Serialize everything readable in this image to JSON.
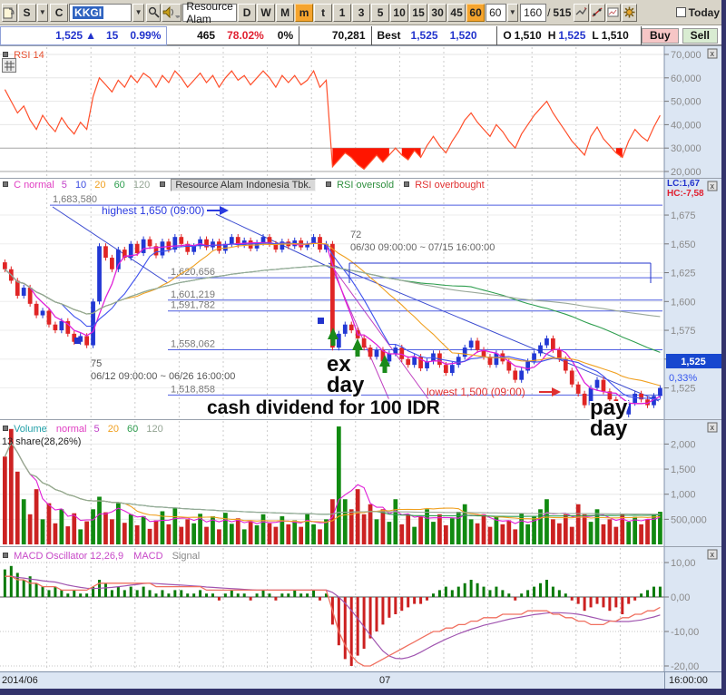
{
  "toolbar": {
    "s_label": "S",
    "c_label": "C",
    "symbol": "KKGI",
    "name": "Resource Alam",
    "period_buttons": [
      "D",
      "W",
      "M",
      "m",
      "t"
    ],
    "minute_buttons": [
      "1",
      "3",
      "5",
      "10",
      "15",
      "30",
      "45",
      "60"
    ],
    "minute_select_value": "60",
    "bar_count": "160",
    "slash": "/",
    "bar_total": "515",
    "today_label": "Today"
  },
  "quote": {
    "price": "1,525",
    "arrow": "▲",
    "change": "15",
    "change_pct": "0.99%",
    "v1": "465",
    "v2": "78.02%",
    "v3": "0%",
    "volume": "70,281",
    "best_label": "Best",
    "bid": "1,525",
    "ask": "1,520",
    "o_label": "O",
    "open": "1,510",
    "h_label": "H",
    "high": "1,525",
    "l_label": "L",
    "low": "1,510",
    "buy_label": "Buy",
    "sell_label": "Sell"
  },
  "rsi_panel": {
    "legend": "RSI 14",
    "axis_labels": [
      "70,000",
      "60,000",
      "50,000",
      "40,000",
      "30,000",
      "20,000"
    ]
  },
  "main_panel": {
    "legend_price": "C normal",
    "ma_periods": [
      "5",
      "10",
      "20",
      "60",
      "120"
    ],
    "name_box": "Resource Alam Indonesia Tbk.",
    "oversold": "RSI oversold",
    "overbought": "RSI overbought",
    "lc": "LC:1,67",
    "hc": "HC:-7,58",
    "axis_labels": [
      "1,675",
      "1,650",
      "1,625",
      "1,600",
      "1,575",
      "1,550",
      "1,525"
    ],
    "badge_price": "1,525",
    "badge_pct": "0,33%",
    "levels": [
      {
        "label": "1,683,580",
        "value": 1683.58
      },
      {
        "label": "1,620,656",
        "value": 1620.656
      },
      {
        "label": "1,601,219",
        "value": 1601.219
      },
      {
        "label": "1,591,782",
        "value": 1591.782
      },
      {
        "label": "1,558,062",
        "value": 1558.062
      },
      {
        "label": "1,518,858",
        "value": 1518.858
      }
    ],
    "highest_label": "highest 1,650 (09:00)",
    "lowest_label": "lowest 1,500 (09:00)",
    "sel_a": {
      "count": "72",
      "range": "06/30 09:00:00 ~ 07/15 16:00:00"
    },
    "sel_b": {
      "count": "75",
      "range": "06/12 09:00:00 ~ 06/26 16:00:00"
    },
    "note_ex": [
      "ex",
      "day"
    ],
    "note_dividend": "cash dividend for 100 IDR",
    "note_pay": [
      "pay",
      "day"
    ]
  },
  "volume_panel": {
    "legend_v": "Volume",
    "legend_mode": "normal",
    "ma_periods": [
      "5",
      "20",
      "60",
      "120"
    ],
    "share_text": "13 share(28,26%)",
    "axis_labels": [
      "2,000",
      "1,500",
      "1,000",
      "500,000"
    ]
  },
  "macd_panel": {
    "legend": "MACD Oscillator 12,26,9",
    "legend_macd": "MACD",
    "legend_signal": "Signal",
    "axis_labels": [
      "10,00",
      "0,00",
      "-10,00",
      "-20,00"
    ]
  },
  "time_axis": {
    "start": "2014/06",
    "mid": "07",
    "end": "16:00:00"
  },
  "chart_data": {
    "type": "candlestick",
    "title": "KKGI Resource Alam Indonesia Tbk. 60-minute chart",
    "panels": [
      "RSI(14)",
      "price + MA(5,10,20,60,120)",
      "volume",
      "MACD oscillator(12,26,9)"
    ],
    "price_axis_range": [
      1510,
      1690
    ],
    "rsi_axis_range": [
      20000,
      70000
    ],
    "volume_axis_ticks_k": [
      2000,
      1500,
      1000,
      500
    ],
    "macd_axis_ticks": [
      10,
      0,
      -10,
      -20
    ],
    "levels": [
      1683.58,
      1620.656,
      1601.219,
      1591.782,
      1558.062,
      1518.858
    ],
    "highest": 1650,
    "lowest": 1500,
    "last": 1525,
    "closes": [
      1628,
      1618,
      1605,
      1612,
      1598,
      1588,
      1592,
      1580,
      1575,
      1583,
      1572,
      1565,
      1570,
      1562,
      1600,
      1648,
      1638,
      1628,
      1645,
      1638,
      1650,
      1642,
      1654,
      1648,
      1640,
      1652,
      1645,
      1656,
      1650,
      1643,
      1648,
      1654,
      1647,
      1652,
      1644,
      1650,
      1656,
      1649,
      1653,
      1646,
      1651,
      1656,
      1650,
      1645,
      1652,
      1648,
      1653,
      1647,
      1650,
      1656,
      1645,
      1650,
      1560,
      1572,
      1580,
      1575,
      1568,
      1560,
      1552,
      1558,
      1548,
      1555,
      1560,
      1550,
      1545,
      1552,
      1542,
      1548,
      1555,
      1545,
      1538,
      1545,
      1552,
      1560,
      1566,
      1558,
      1552,
      1545,
      1555,
      1548,
      1540,
      1532,
      1540,
      1548,
      1555,
      1562,
      1568,
      1558,
      1550,
      1540,
      1528,
      1520,
      1510,
      1525,
      1532,
      1522,
      1515,
      1508,
      1502,
      1512,
      1520,
      1515,
      1510,
      1518,
      1525
    ],
    "volumes_k": [
      1750,
      2300,
      1450,
      900,
      600,
      1100,
      500,
      820,
      420,
      700,
      360,
      620,
      300,
      460,
      700,
      950,
      640,
      500,
      820,
      430,
      600,
      380,
      560,
      310,
      480,
      660,
      400,
      720,
      350,
      500,
      420,
      610,
      350,
      560,
      300,
      630,
      410,
      520,
      300,
      450,
      380,
      600,
      420,
      350,
      560,
      400,
      480,
      350,
      620,
      400,
      300,
      500,
      900,
      2350,
      900,
      700,
      1100,
      600,
      800,
      500,
      700,
      450,
      900,
      400,
      600,
      350,
      550,
      700,
      450,
      600,
      380,
      520,
      650,
      800,
      500,
      420,
      600,
      350,
      550,
      400,
      480,
      300,
      620,
      400,
      550,
      700,
      900,
      500,
      420,
      600,
      350,
      800,
      600,
      450,
      700,
      400,
      500,
      350,
      600,
      450,
      550,
      400,
      500,
      600,
      650
    ],
    "rsi": [
      55,
      50,
      45,
      48,
      42,
      38,
      44,
      40,
      37,
      43,
      39,
      36,
      41,
      38,
      52,
      60,
      57,
      54,
      59,
      56,
      61,
      58,
      62,
      60,
      56,
      61,
      58,
      63,
      60,
      56,
      59,
      62,
      58,
      61,
      56,
      60,
      63,
      59,
      61,
      57,
      60,
      63,
      60,
      56,
      61,
      58,
      61,
      57,
      59,
      63,
      56,
      59,
      22,
      25,
      28,
      26,
      23,
      21,
      24,
      27,
      24,
      27,
      30,
      27,
      25,
      29,
      26,
      31,
      35,
      31,
      28,
      33,
      37,
      42,
      45,
      41,
      38,
      35,
      40,
      37,
      33,
      30,
      36,
      40,
      44,
      47,
      50,
      45,
      41,
      37,
      33,
      30,
      27,
      35,
      39,
      34,
      31,
      28,
      26,
      33,
      38,
      35,
      33,
      39,
      44
    ],
    "macd_osc": [
      8,
      9,
      7,
      5,
      6,
      4,
      3,
      2,
      3,
      2,
      1,
      2,
      1,
      1,
      3,
      5,
      4,
      2,
      3,
      2,
      3,
      2,
      3,
      2,
      1,
      2,
      1,
      2,
      2,
      1,
      1,
      2,
      1,
      1,
      -1,
      1,
      2,
      1,
      1,
      -1,
      1,
      2,
      1,
      -1,
      1,
      1,
      2,
      1,
      1,
      2,
      -1,
      1,
      -8,
      -14,
      -18,
      -20,
      -17,
      -15,
      -12,
      -10,
      -8,
      -6,
      -5,
      -4,
      -3,
      -2,
      -2,
      -1,
      1,
      2,
      3,
      2,
      3,
      4,
      5,
      4,
      3,
      2,
      3,
      2,
      1,
      -1,
      1,
      2,
      3,
      4,
      5,
      3,
      2,
      1,
      -1,
      -2,
      -4,
      -3,
      -2,
      -3,
      -4,
      -3,
      -5,
      -2,
      -1,
      1,
      2,
      3,
      3
    ],
    "macd_line": [
      6,
      6,
      5,
      5,
      4,
      4,
      3,
      3,
      3,
      2,
      2,
      2,
      2,
      2,
      3,
      4,
      4,
      4,
      4,
      4,
      4,
      4,
      4,
      4,
      3,
      3,
      3,
      3,
      3,
      3,
      3,
      3,
      2,
      2,
      2,
      2,
      2,
      2,
      2,
      2,
      2,
      2,
      2,
      2,
      2,
      2,
      2,
      2,
      2,
      2,
      2,
      2,
      -4,
      -10,
      -14,
      -17,
      -19,
      -20,
      -20,
      -19,
      -18,
      -17,
      -16,
      -15,
      -14,
      -13,
      -12,
      -11,
      -10,
      -10,
      -9,
      -9,
      -8,
      -8,
      -7,
      -7,
      -6,
      -6,
      -6,
      -5,
      -5,
      -5,
      -5,
      -4,
      -4,
      -4,
      -4,
      -5,
      -5,
      -6,
      -6,
      -7,
      -7,
      -8,
      -8,
      -8,
      -7,
      -7,
      -6,
      -6,
      -5,
      -5,
      -4,
      -4,
      -3
    ]
  }
}
